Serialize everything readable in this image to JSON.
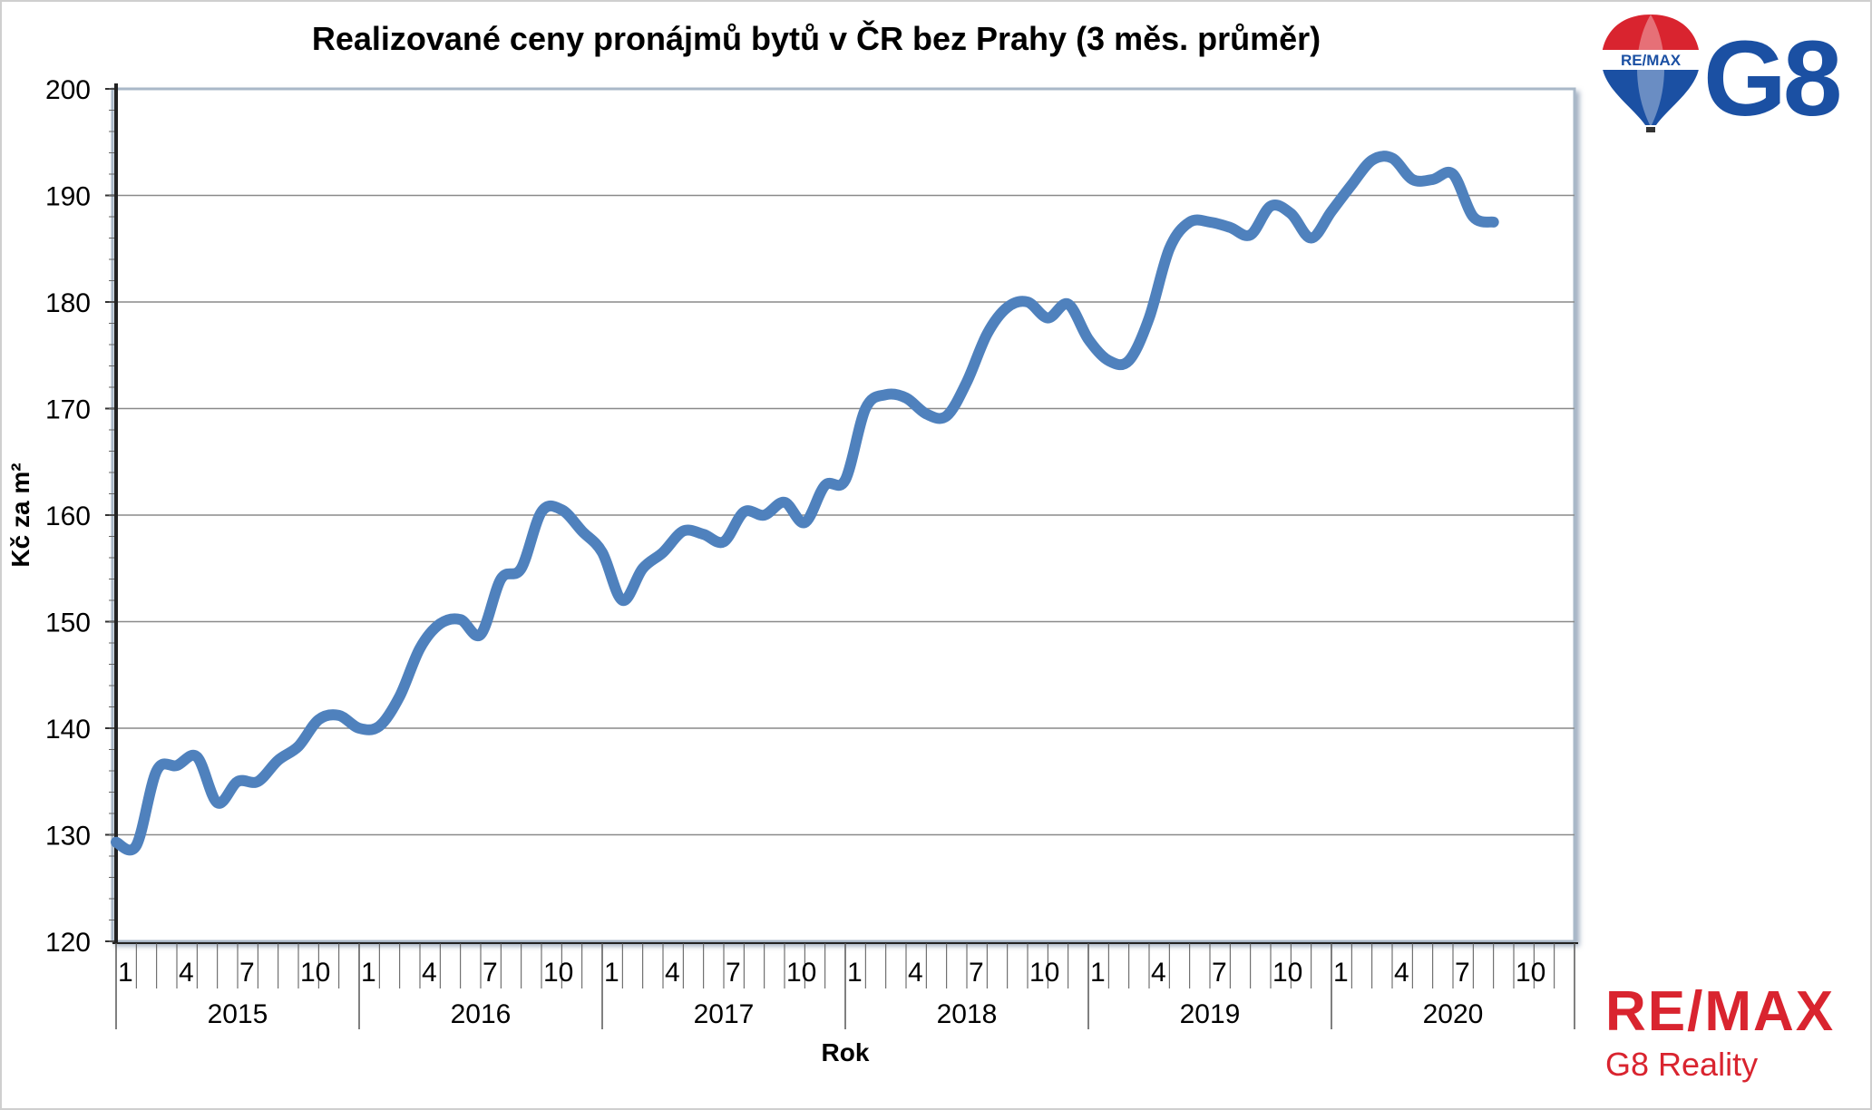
{
  "chart_data": {
    "type": "line",
    "title": "Realizované ceny pronájmů bytů v ČR bez Prahy (3 měs. průměr)",
    "xlabel": "Rok",
    "ylabel": "Kč za m²",
    "ylim": [
      120,
      200
    ],
    "yticks": [
      "120",
      "130",
      "140",
      "150",
      "160",
      "170",
      "180",
      "190",
      "200"
    ],
    "month_tick_labels": [
      "1",
      "4",
      "7",
      "10"
    ],
    "years": [
      "2015",
      "2016",
      "2017",
      "2018",
      "2019",
      "2020"
    ],
    "grid": true,
    "legend": "none",
    "line_color": "#4f81bd",
    "series": [
      {
        "values": [
          129.3,
          129.0,
          136.0,
          136.5,
          137.3,
          133.0,
          135.0,
          135.0,
          137.0,
          138.3,
          140.8,
          141.2,
          140.0,
          140.2,
          143.0,
          147.5,
          149.8,
          150.2,
          148.8,
          154.0,
          155.0,
          160.3,
          160.5,
          158.5,
          156.5,
          152.0,
          155.0,
          156.5,
          158.5,
          158.2,
          157.5,
          160.3,
          160.0,
          161.2,
          159.3,
          162.8,
          163.3,
          170.0,
          171.3,
          171.0,
          169.5,
          169.3,
          172.5,
          177.0,
          179.5,
          180.0,
          178.5,
          179.8,
          176.5,
          174.5,
          174.5,
          178.5,
          185.0,
          187.5,
          187.5,
          187.0,
          186.3,
          189.0,
          188.3,
          186.0,
          188.5,
          191.0,
          193.3,
          193.5,
          191.5,
          191.5,
          192.0,
          188.0,
          187.5
        ]
      }
    ]
  },
  "brand": {
    "balloon_text": "RE/MAX",
    "office_logo": "G8",
    "footer_brand": "RE/MAX",
    "footer_office": "G8 Reality",
    "brand_red": "#d9242f",
    "brand_blue": "#1b50a3"
  }
}
